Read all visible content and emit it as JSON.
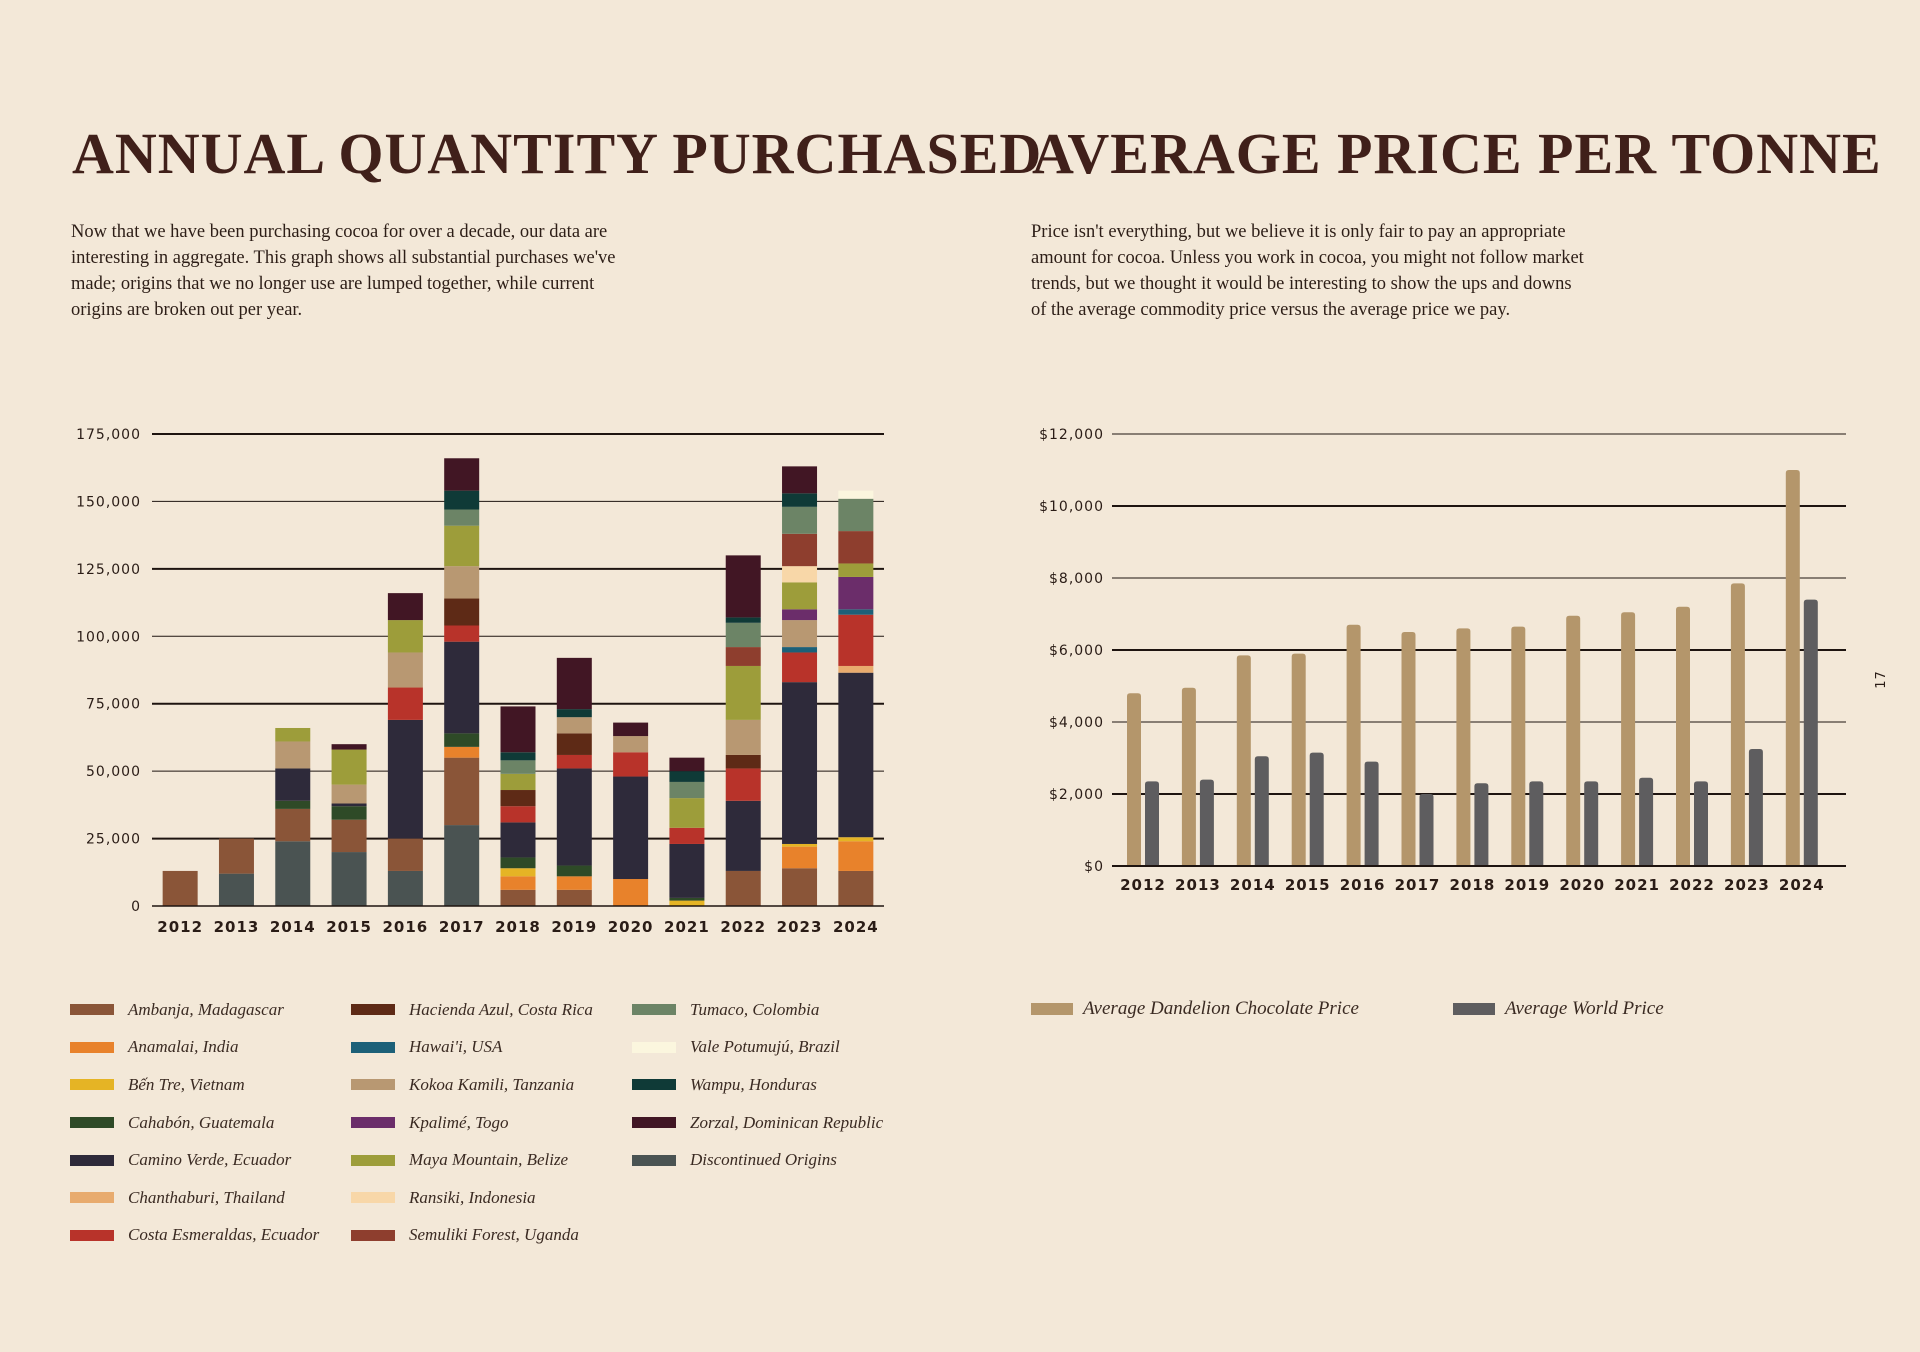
{
  "left": {
    "title": "ANNUAL QUANTITY PURCHASED",
    "intro": "Now that we have been purchasing cocoa for over a decade, our data are interesting in aggregate. This graph shows all substantial purchases we've made; origins that we no longer use are lumped together, while current origins are broken out per year."
  },
  "right": {
    "title": "AVERAGE PRICE PER TONNE",
    "intro": "Price isn't everything, but we believe it is only fair to pay an appropriate amount for cocoa. Unless you work in cocoa, you might not follow market trends, but we thought it would be interesting to show the ups and downs of the average commodity price versus the average price we pay."
  },
  "page_number": "17",
  "chart_data": [
    {
      "type": "bar",
      "stacked": true,
      "title": "ANNUAL QUANTITY PURCHASED",
      "categories": [
        "2012",
        "2013",
        "2014",
        "2015",
        "2016",
        "2017",
        "2018",
        "2019",
        "2020",
        "2021",
        "2022",
        "2023",
        "2024"
      ],
      "ylim": [
        0,
        175000
      ],
      "yticks": [
        0,
        25000,
        50000,
        75000,
        100000,
        125000,
        150000,
        175000
      ],
      "ytick_labels": [
        "0",
        "25,000",
        "50,000",
        "75,000",
        "100,000",
        "125,000",
        "150,000",
        "175,000"
      ],
      "series": [
        {
          "name": "Discontinued Origins",
          "color": "#4a5352",
          "values": [
            0,
            12000,
            24000,
            20000,
            13000,
            30000,
            0,
            0,
            0,
            0,
            0,
            0,
            0
          ]
        },
        {
          "name": "Ambanja, Madagascar",
          "color": "#8a5538",
          "values": [
            13000,
            13000,
            12000,
            12000,
            12000,
            25000,
            6000,
            6000,
            0,
            0,
            13000,
            14000,
            13000
          ]
        },
        {
          "name": "Anamalai, India",
          "color": "#e8822b",
          "values": [
            0,
            0,
            0,
            0,
            0,
            4000,
            5000,
            5000,
            10000,
            0,
            0,
            8000,
            11000
          ]
        },
        {
          "name": "Bến Tre, Vietnam",
          "color": "#e5b425",
          "values": [
            0,
            0,
            0,
            0,
            0,
            0,
            3000,
            0,
            0,
            2000,
            0,
            1000,
            1500
          ]
        },
        {
          "name": "Cahabón, Guatemala",
          "color": "#2e4a27",
          "values": [
            0,
            0,
            3000,
            5000,
            0,
            5000,
            4000,
            4000,
            0,
            1000,
            0,
            0,
            0
          ]
        },
        {
          "name": "Camino Verde, Ecuador",
          "color": "#2e2a3a",
          "values": [
            0,
            0,
            12000,
            1000,
            44000,
            34000,
            13000,
            36000,
            38000,
            20000,
            26000,
            60000,
            61000
          ]
        },
        {
          "name": "Chanthaburi, Thailand",
          "color": "#e8ab6e",
          "values": [
            0,
            0,
            0,
            0,
            0,
            0,
            0,
            0,
            0,
            0,
            0,
            0,
            2500
          ]
        },
        {
          "name": "Costa Esmeraldas, Ecuador",
          "color": "#b8332a",
          "values": [
            0,
            0,
            0,
            0,
            12000,
            6000,
            6000,
            5000,
            9000,
            6000,
            12000,
            11000,
            19000
          ]
        },
        {
          "name": "Hacienda Azul, Costa Rica",
          "color": "#5e2a16",
          "values": [
            0,
            0,
            0,
            0,
            0,
            10000,
            6000,
            8000,
            0,
            0,
            5000,
            0,
            0
          ]
        },
        {
          "name": "Hawai'i, USA",
          "color": "#1c6078",
          "values": [
            0,
            0,
            0,
            0,
            0,
            0,
            0,
            0,
            0,
            0,
            0,
            2000,
            2000
          ]
        },
        {
          "name": "Kokoa Kamili, Tanzania",
          "color": "#b89872",
          "values": [
            0,
            0,
            10000,
            7000,
            13000,
            12000,
            0,
            6000,
            6000,
            0,
            13000,
            10000,
            0
          ]
        },
        {
          "name": "Kpalimé, Togo",
          "color": "#6b2d6a",
          "values": [
            0,
            0,
            0,
            0,
            0,
            0,
            0,
            0,
            0,
            0,
            0,
            4000,
            12000
          ]
        },
        {
          "name": "Maya Mountain, Belize",
          "color": "#9d9d3a",
          "values": [
            0,
            0,
            5000,
            13000,
            12000,
            15000,
            6000,
            0,
            0,
            11000,
            20000,
            10000,
            5000
          ]
        },
        {
          "name": "Ransiki, Indonesia",
          "color": "#f8d7a8",
          "values": [
            0,
            0,
            0,
            0,
            0,
            0,
            0,
            0,
            0,
            0,
            0,
            6000,
            0
          ]
        },
        {
          "name": "Semuliki Forest, Uganda",
          "color": "#8e3e2e",
          "values": [
            0,
            0,
            0,
            0,
            0,
            0,
            0,
            0,
            0,
            0,
            7000,
            12000,
            12000
          ]
        },
        {
          "name": "Tumaco, Colombia",
          "color": "#6c8466",
          "values": [
            0,
            0,
            0,
            0,
            0,
            6000,
            5000,
            0,
            0,
            6000,
            9000,
            10000,
            12000
          ]
        },
        {
          "name": "Vale Potumujú, Brazil",
          "color": "#fbf6de",
          "values": [
            0,
            0,
            0,
            0,
            0,
            0,
            0,
            0,
            0,
            0,
            0,
            0,
            3000
          ]
        },
        {
          "name": "Wampu, Honduras",
          "color": "#0f3a37",
          "values": [
            0,
            0,
            0,
            0,
            0,
            7000,
            3000,
            3000,
            0,
            4000,
            2000,
            5000,
            0
          ]
        },
        {
          "name": "Zorzal, Dominican Republic",
          "color": "#411624",
          "values": [
            0,
            0,
            0,
            2000,
            10000,
            12000,
            17000,
            19000,
            5000,
            5000,
            23000,
            10000,
            0
          ]
        }
      ],
      "legend_order": [
        "Ambanja, Madagascar",
        "Anamalai, India",
        "Bến Tre, Vietnam",
        "Cahabón, Guatemala",
        "Camino Verde, Ecuador",
        "Chanthaburi, Thailand",
        "Costa Esmeraldas, Ecuador",
        "Hacienda Azul, Costa Rica",
        "Hawai'i, USA",
        "Kokoa Kamili, Tanzania",
        "Kpalimé, Togo",
        "Maya Mountain, Belize",
        "Ransiki, Indonesia",
        "Semuliki Forest, Uganda",
        "Tumaco, Colombia",
        "Vale Potumujú, Brazil",
        "Wampu, Honduras",
        "Zorzal, Dominican Republic",
        "Discontinued Origins"
      ]
    },
    {
      "type": "bar",
      "grouped": true,
      "title": "AVERAGE PRICE PER TONNE",
      "categories": [
        "2012",
        "2013",
        "2014",
        "2015",
        "2016",
        "2017",
        "2018",
        "2019",
        "2020",
        "2021",
        "2022",
        "2023",
        "2024"
      ],
      "ylim": [
        0,
        12000
      ],
      "yticks": [
        0,
        2000,
        4000,
        6000,
        8000,
        10000,
        12000
      ],
      "ytick_labels": [
        "$0",
        "$2,000",
        "$4,000",
        "$6,000",
        "$8,000",
        "$10,000",
        "$12,000"
      ],
      "series": [
        {
          "name": "Average Dandelion Chocolate Price",
          "color": "#b4966b",
          "values": [
            4800,
            4950,
            5850,
            5900,
            6700,
            6500,
            6600,
            6650,
            6950,
            7050,
            7200,
            7850,
            11000
          ]
        },
        {
          "name": "Average World Price",
          "color": "#5e5d5f",
          "values": [
            2350,
            2400,
            3050,
            3150,
            2900,
            2000,
            2300,
            2350,
            2350,
            2450,
            2350,
            3250,
            7400
          ]
        }
      ]
    }
  ]
}
